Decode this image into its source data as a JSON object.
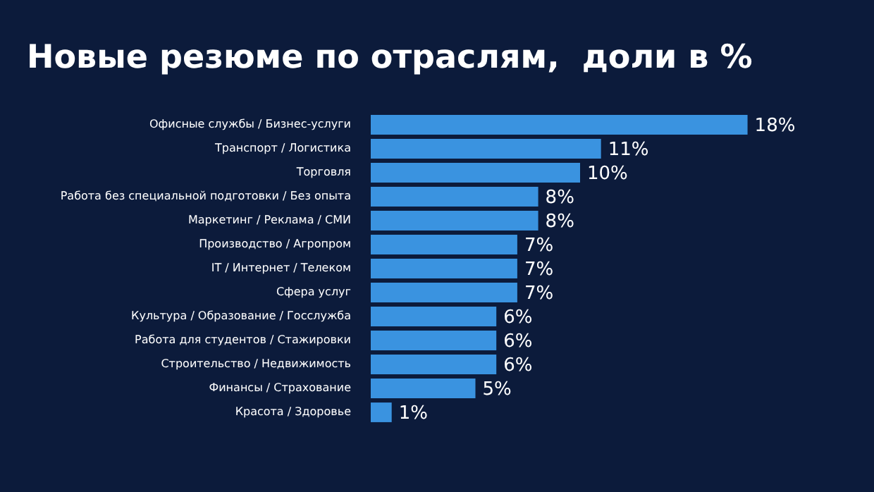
{
  "chart_data": {
    "type": "bar",
    "orientation": "horizontal",
    "title": "Новые резюме по отраслям,  доли в %",
    "categories": [
      "Офисные службы / Бизнес-услуги",
      "Транспорт / Логистика",
      "Торговля",
      "Работа без специальной подготовки / Без опыта",
      "Маркетинг / Реклама / СМИ",
      "Производство / Агропром",
      "IT / Интернет / Телеком",
      "Сфера услуг",
      "Культура / Образование / Госслужба",
      "Работа для студентов / Стажировки",
      "Строительство / Недвижимость",
      "Финансы / Страхование",
      "Красота / Здоровье"
    ],
    "values": [
      18,
      11,
      10,
      8,
      8,
      7,
      7,
      7,
      6,
      6,
      6,
      5,
      1
    ],
    "value_labels": [
      "18%",
      "11%",
      "10%",
      "8%",
      "8%",
      "7%",
      "7%",
      "7%",
      "6%",
      "6%",
      "6%",
      "5%",
      "1%"
    ],
    "color": "#3a93e0",
    "tick_labels": "y"
  }
}
